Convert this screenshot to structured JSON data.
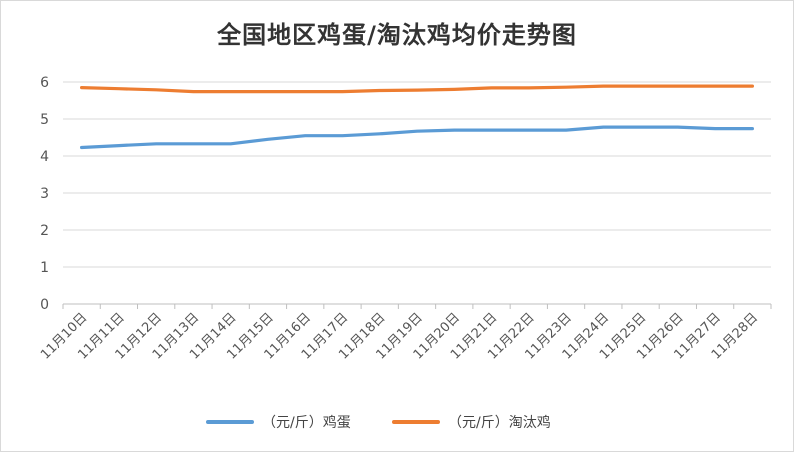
{
  "chart_data": {
    "type": "line",
    "title": "全国地区鸡蛋/淘汰鸡均价走势图",
    "xlabel": "",
    "ylabel": "",
    "ylim": [
      0,
      6
    ],
    "yticks": [
      "0",
      "1",
      "2",
      "3",
      "4",
      "5",
      "6"
    ],
    "grid": true,
    "legend_position": "bottom",
    "categories": [
      "11月10日",
      "11月11日",
      "11月12日",
      "11月13日",
      "11月14日",
      "11月15日",
      "11月16日",
      "11月17日",
      "11月18日",
      "11月19日",
      "11月20日",
      "11月21日",
      "11月22日",
      "11月23日",
      "11月24日",
      "11月25日",
      "11月26日",
      "11月27日",
      "11月28日"
    ],
    "series": [
      {
        "name": "（元/斤）鸡蛋",
        "color": "#5b9bd5",
        "values": [
          4.23,
          4.28,
          4.33,
          4.33,
          4.33,
          4.45,
          4.55,
          4.55,
          4.6,
          4.67,
          4.7,
          4.7,
          4.7,
          4.7,
          4.78,
          4.78,
          4.78,
          4.74,
          4.74
        ]
      },
      {
        "name": "（元/斤）淘汰鸡",
        "color": "#ed7d31",
        "values": [
          5.85,
          5.82,
          5.79,
          5.74,
          5.74,
          5.74,
          5.74,
          5.74,
          5.77,
          5.78,
          5.8,
          5.84,
          5.84,
          5.86,
          5.89,
          5.89,
          5.89,
          5.89,
          5.89
        ]
      }
    ]
  }
}
